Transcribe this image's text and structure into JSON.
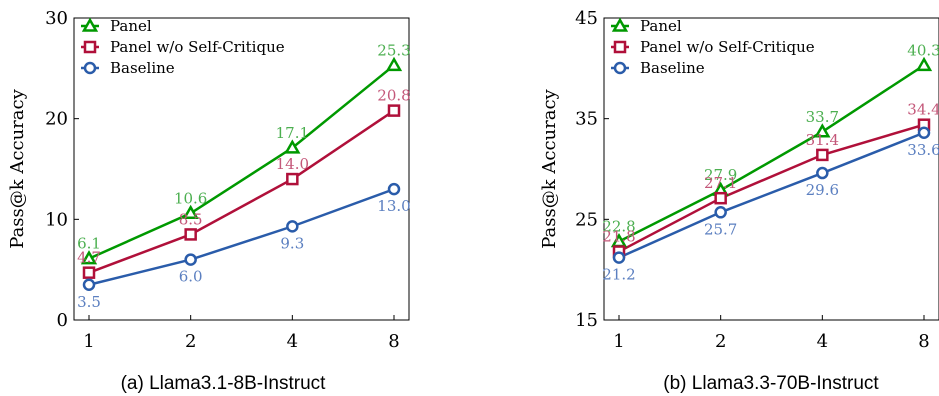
{
  "chart_data": [
    {
      "type": "line",
      "caption": "(a) Llama3.1-8B-Instruct",
      "ylabel": "Pass@k Accuracy",
      "categories": [
        "1",
        "2",
        "4",
        "8"
      ],
      "ylim": [
        0,
        30
      ],
      "yticks": [
        "0",
        "10",
        "20",
        "30"
      ],
      "legend_position": "top-left",
      "series": [
        {
          "name": "Panel",
          "values": [
            6.1,
            10.6,
            17.1,
            25.3
          ],
          "labels": [
            "6.1",
            "10.6",
            "17.1",
            "25.3"
          ],
          "color": "#009900",
          "text_color": "#4caf50",
          "marker": "triangle",
          "label_side": "above"
        },
        {
          "name": "Panel w/o Self-Critique",
          "values": [
            4.7,
            8.5,
            14.0,
            20.8
          ],
          "labels": [
            "4.7",
            "8.5",
            "14.0",
            "20.8"
          ],
          "color": "#b0103a",
          "text_color": "#c4587a",
          "marker": "square",
          "label_side": "above"
        },
        {
          "name": "Baseline",
          "values": [
            3.5,
            6.0,
            9.3,
            13.0
          ],
          "labels": [
            "3.5",
            "6.0",
            "9.3",
            "13.0"
          ],
          "color": "#2a5caa",
          "text_color": "#5b7fc0",
          "marker": "circle",
          "label_side": "below"
        }
      ]
    },
    {
      "type": "line",
      "caption": "(b) Llama3.3-70B-Instruct",
      "ylabel": "Pass@k Accuracy",
      "categories": [
        "1",
        "2",
        "4",
        "8"
      ],
      "ylim": [
        15,
        45
      ],
      "yticks": [
        "15",
        "25",
        "35",
        "45"
      ],
      "legend_position": "top-left",
      "series": [
        {
          "name": "Panel",
          "values": [
            22.8,
            27.9,
            33.7,
            40.3
          ],
          "labels": [
            "22.8",
            "27.9",
            "33.7",
            "40.3"
          ],
          "color": "#009900",
          "text_color": "#4caf50",
          "marker": "triangle",
          "label_side": "above"
        },
        {
          "name": "Panel w/o Self-Critique",
          "values": [
            21.8,
            27.1,
            31.4,
            34.4
          ],
          "labels": [
            "21.8",
            "27.1",
            "31.4",
            "34.4"
          ],
          "color": "#b0103a",
          "text_color": "#c4587a",
          "marker": "square",
          "label_side": "above"
        },
        {
          "name": "Baseline",
          "values": [
            21.2,
            25.7,
            29.6,
            33.6
          ],
          "labels": [
            "21.2",
            "25.7",
            "29.6",
            "33.6"
          ],
          "color": "#2a5caa",
          "text_color": "#5b7fc0",
          "marker": "circle",
          "label_side": "below"
        }
      ]
    }
  ]
}
